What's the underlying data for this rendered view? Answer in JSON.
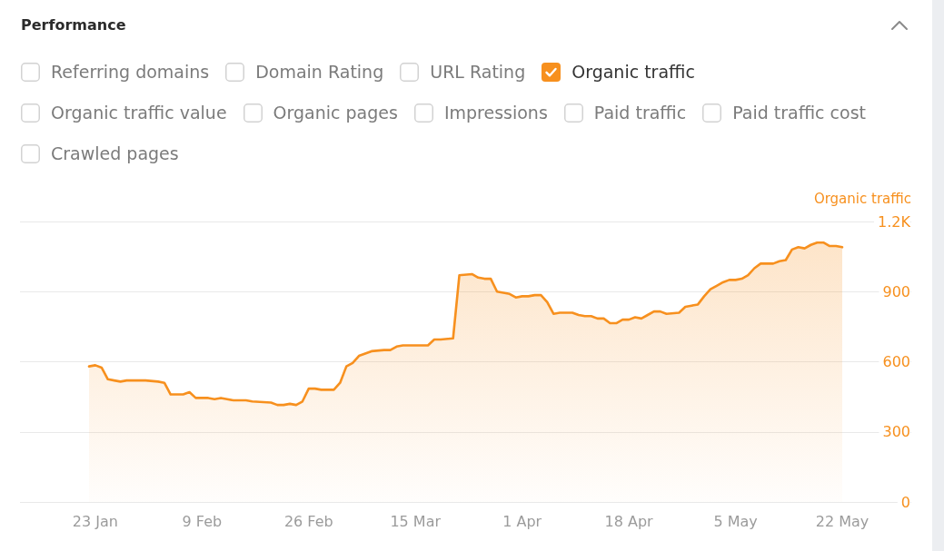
{
  "chart_data": {
    "type": "area",
    "title": "Performance",
    "annotations": [
      "Referring domains",
      "Domain Rating",
      "URL Rating",
      "Organic traffic",
      "Organic traffic value",
      "Organic pages",
      "Impressions",
      "Paid traffic",
      "Paid traffic cost",
      "Crawled pages"
    ],
    "ylabel": "Organic traffic",
    "x": [
      "--01-22",
      "--01-23",
      "--01-24",
      "--01-25",
      "--01-26",
      "--01-27",
      "--01-28",
      "--01-31",
      "--02-02",
      "--02-03",
      "--02-04",
      "--02-06",
      "--02-07",
      "--02-08",
      "--02-10",
      "--02-11",
      "--02-12",
      "--02-13",
      "--02-14",
      "--02-16",
      "--02-17",
      "--02-20",
      "--02-21",
      "--02-22",
      "--02-23",
      "--02-24",
      "--02-25",
      "--02-26",
      "--02-27",
      "--02-28",
      "--03-02",
      "--03-03",
      "--03-04",
      "--03-05",
      "--03-06",
      "--03-07",
      "--03-08",
      "--03-10",
      "--03-11",
      "--03-12",
      "--03-13",
      "--03-15",
      "--03-17",
      "--03-18",
      "--03-19",
      "--03-21",
      "--03-22",
      "--03-24",
      "--03-25",
      "--03-26",
      "--03-27",
      "--03-28",
      "--03-29",
      "--03-30",
      "--03-31",
      "--04-01",
      "--04-02",
      "--04-03",
      "--04-04",
      "--04-05",
      "--04-06",
      "--04-07",
      "--04-09",
      "--04-10",
      "--04-11",
      "--04-12",
      "--04-13",
      "--04-14",
      "--04-15",
      "--04-16",
      "--04-17",
      "--04-18",
      "--04-19",
      "--04-20",
      "--04-21",
      "--04-22",
      "--04-23",
      "--04-24",
      "--04-26",
      "--04-27",
      "--04-28",
      "--04-29",
      "--04-30",
      "--05-01",
      "--05-02",
      "--05-03",
      "--05-04",
      "--05-05",
      "--05-06",
      "--05-07",
      "--05-08",
      "--05-09",
      "--05-10",
      "--05-11",
      "--05-12",
      "--05-13",
      "--05-14",
      "--05-15",
      "--05-16",
      "--05-17",
      "--05-18",
      "--05-19",
      "--05-20",
      "--05-21",
      "--05-22"
    ],
    "series": [
      {
        "color": "#f7901e",
        "values": [
          580,
          585,
          575,
          525,
          520,
          515,
          520,
          520,
          515,
          510,
          460,
          460,
          470,
          445,
          445,
          440,
          445,
          440,
          435,
          435,
          430,
          425,
          415,
          415,
          420,
          415,
          430,
          485,
          485,
          480,
          480,
          510,
          580,
          595,
          625,
          635,
          645,
          650,
          650,
          665,
          670,
          670,
          670,
          695,
          695,
          700,
          970,
          975,
          960,
          955,
          955,
          900,
          895,
          890,
          875,
          880,
          880,
          885,
          885,
          855,
          805,
          810,
          810,
          800,
          795,
          795,
          785,
          785,
          765,
          765,
          780,
          780,
          790,
          785,
          800,
          815,
          815,
          805,
          810,
          835,
          840,
          845,
          880,
          910,
          925,
          940,
          950,
          950,
          955,
          970,
          1000,
          1020,
          1020,
          1020,
          1030,
          1035,
          1080,
          1090,
          1085,
          1100,
          1110,
          1110,
          1095,
          1095,
          1090
        ]
      }
    ],
    "xlim": [
      "--01-11",
      "--06-02"
    ],
    "xticks": [
      {
        "value": "--01-23",
        "label": "23 Jan"
      },
      {
        "value": "--02-09",
        "label": "9 Feb"
      },
      {
        "value": "--02-26",
        "label": "26 Feb"
      },
      {
        "value": "--03-15",
        "label": "15 Mar"
      },
      {
        "value": "--04-01",
        "label": "1 Apr"
      },
      {
        "value": "--04-18",
        "label": "18 Apr"
      },
      {
        "value": "--05-05",
        "label": "5 May"
      },
      {
        "value": "--05-22",
        "label": "22 May"
      }
    ],
    "ylim": [
      0,
      1200
    ],
    "yticks": [
      0,
      300,
      600,
      900,
      {
        "value": 1200,
        "label": "1.2K"
      }
    ],
    "grid": "y"
  }
}
